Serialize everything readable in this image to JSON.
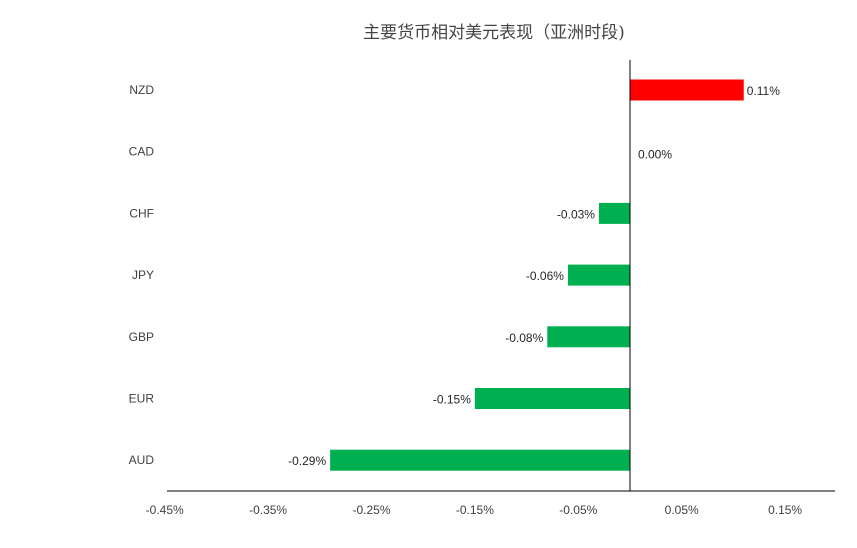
{
  "chart_data": {
    "type": "bar",
    "orientation": "horizontal",
    "title": "主要货币相对美元表现（亚洲时段)",
    "categories": [
      "NZD",
      "CAD",
      "CHF",
      "JPY",
      "GBP",
      "EUR",
      "AUD"
    ],
    "values": [
      0.11,
      0.0,
      -0.03,
      -0.06,
      -0.08,
      -0.15,
      -0.29
    ],
    "data_labels": [
      "0.11%",
      "0.00%",
      "-0.03%",
      "-0.06%",
      "-0.08%",
      "-0.15%",
      "-0.29%"
    ],
    "xlim": [
      -0.45,
      0.2
    ],
    "x_ticks": [
      -0.45,
      -0.35,
      -0.25,
      -0.15,
      -0.05,
      0.05,
      0.15
    ],
    "x_tick_labels": [
      "-0.45%",
      "-0.35%",
      "-0.25%",
      "-0.15%",
      "-0.05%",
      "0.05%",
      "0.15%"
    ],
    "grid": false,
    "colors": {
      "positive": "#ff0000",
      "negative": "#00b050"
    }
  }
}
